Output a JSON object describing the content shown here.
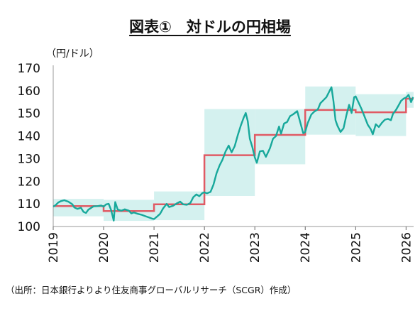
{
  "chart_data": {
    "type": "line",
    "title": "図表①　対ドルの円相場",
    "unit_label": "（円/ドル）",
    "source": "（出所：日本銀行よりより住友商事グローバルリサーチ（SCGR）作成）",
    "ylim": [
      100,
      170
    ],
    "yticks": [
      100,
      110,
      120,
      130,
      140,
      150,
      160,
      170
    ],
    "xlim": [
      2019.0,
      2026.15
    ],
    "xticks": [
      "2019",
      "2020",
      "2021",
      "2022",
      "2023",
      "2024",
      "2025",
      "2026"
    ],
    "grid": false,
    "colors": {
      "rate_line": "#17a89b",
      "average_line": "#e05a64",
      "range_band": "#d4f1ef"
    },
    "series": [
      {
        "kind": "range_band",
        "bands": [
          {
            "year": 2019,
            "low": 104.5,
            "high": 112.2
          },
          {
            "year": 2020,
            "low": 102.5,
            "high": 111.8
          },
          {
            "year": 2021,
            "low": 102.8,
            "high": 115.5
          },
          {
            "year": 2022,
            "low": 113.5,
            "high": 151.9
          },
          {
            "year": 2023,
            "low": 127.5,
            "high": 151.9
          },
          {
            "year": 2024,
            "low": 140.6,
            "high": 161.9
          },
          {
            "year": 2025,
            "low": 140.0,
            "high": 158.5
          },
          {
            "year": 2026,
            "low": 152.5,
            "high": 159.5
          }
        ]
      },
      {
        "kind": "annual_average",
        "averages": [
          {
            "year": 2019,
            "value": 109.0
          },
          {
            "year": 2020,
            "value": 106.8
          },
          {
            "year": 2021,
            "value": 109.8
          },
          {
            "year": 2022,
            "value": 131.5
          },
          {
            "year": 2023,
            "value": 140.5
          },
          {
            "year": 2024,
            "value": 151.5
          },
          {
            "year": 2025,
            "value": 150.5
          },
          {
            "year": 2026,
            "value": 156.5
          }
        ]
      },
      {
        "kind": "rate",
        "points": [
          [
            2019.0,
            108.8
          ],
          [
            2019.05,
            109.5
          ],
          [
            2019.1,
            110.6
          ],
          [
            2019.15,
            111.2
          ],
          [
            2019.22,
            111.6
          ],
          [
            2019.3,
            111.0
          ],
          [
            2019.38,
            109.8
          ],
          [
            2019.42,
            108.4
          ],
          [
            2019.48,
            107.8
          ],
          [
            2019.55,
            108.3
          ],
          [
            2019.6,
            106.5
          ],
          [
            2019.65,
            106.0
          ],
          [
            2019.7,
            107.5
          ],
          [
            2019.75,
            108.2
          ],
          [
            2019.8,
            108.9
          ],
          [
            2019.88,
            109.0
          ],
          [
            2019.95,
            109.3
          ],
          [
            2020.0,
            108.8
          ],
          [
            2020.05,
            109.8
          ],
          [
            2020.1,
            110.0
          ],
          [
            2020.15,
            107.2
          ],
          [
            2020.2,
            102.6
          ],
          [
            2020.23,
            110.8
          ],
          [
            2020.28,
            107.5
          ],
          [
            2020.35,
            107.0
          ],
          [
            2020.42,
            107.6
          ],
          [
            2020.5,
            107.0
          ],
          [
            2020.55,
            105.8
          ],
          [
            2020.6,
            106.2
          ],
          [
            2020.68,
            105.6
          ],
          [
            2020.75,
            105.2
          ],
          [
            2020.82,
            104.6
          ],
          [
            2020.9,
            104.0
          ],
          [
            2020.96,
            103.5
          ],
          [
            2021.0,
            103.3
          ],
          [
            2021.05,
            104.2
          ],
          [
            2021.12,
            105.6
          ],
          [
            2021.18,
            108.0
          ],
          [
            2021.25,
            110.0
          ],
          [
            2021.3,
            108.6
          ],
          [
            2021.38,
            109.2
          ],
          [
            2021.45,
            110.2
          ],
          [
            2021.52,
            111.0
          ],
          [
            2021.58,
            109.8
          ],
          [
            2021.65,
            109.6
          ],
          [
            2021.72,
            110.4
          ],
          [
            2021.78,
            113.0
          ],
          [
            2021.84,
            114.2
          ],
          [
            2021.9,
            113.4
          ],
          [
            2021.96,
            114.8
          ],
          [
            2022.0,
            115.1
          ],
          [
            2022.05,
            114.7
          ],
          [
            2022.12,
            115.3
          ],
          [
            2022.18,
            118.5
          ],
          [
            2022.24,
            123.5
          ],
          [
            2022.3,
            127.0
          ],
          [
            2022.36,
            129.6
          ],
          [
            2022.42,
            133.2
          ],
          [
            2022.48,
            135.8
          ],
          [
            2022.54,
            132.8
          ],
          [
            2022.6,
            135.5
          ],
          [
            2022.66,
            140.2
          ],
          [
            2022.72,
            144.5
          ],
          [
            2022.78,
            148.2
          ],
          [
            2022.82,
            150.2
          ],
          [
            2022.86,
            146.6
          ],
          [
            2022.9,
            138.8
          ],
          [
            2022.95,
            135.2
          ],
          [
            2023.0,
            130.5
          ],
          [
            2023.04,
            128.2
          ],
          [
            2023.1,
            133.2
          ],
          [
            2023.16,
            133.5
          ],
          [
            2023.22,
            130.8
          ],
          [
            2023.3,
            134.6
          ],
          [
            2023.36,
            138.8
          ],
          [
            2023.42,
            140.0
          ],
          [
            2023.48,
            144.2
          ],
          [
            2023.52,
            141.0
          ],
          [
            2023.58,
            145.5
          ],
          [
            2023.64,
            146.2
          ],
          [
            2023.7,
            148.8
          ],
          [
            2023.76,
            149.6
          ],
          [
            2023.84,
            151.0
          ],
          [
            2023.9,
            146.2
          ],
          [
            2023.96,
            141.2
          ],
          [
            2024.0,
            141.8
          ],
          [
            2024.05,
            145.8
          ],
          [
            2024.12,
            149.5
          ],
          [
            2024.18,
            150.8
          ],
          [
            2024.25,
            151.8
          ],
          [
            2024.3,
            154.5
          ],
          [
            2024.36,
            155.8
          ],
          [
            2024.42,
            157.2
          ],
          [
            2024.48,
            159.8
          ],
          [
            2024.52,
            161.6
          ],
          [
            2024.56,
            155.5
          ],
          [
            2024.6,
            147.0
          ],
          [
            2024.64,
            144.5
          ],
          [
            2024.7,
            141.8
          ],
          [
            2024.76,
            143.4
          ],
          [
            2024.82,
            149.5
          ],
          [
            2024.87,
            153.8
          ],
          [
            2024.92,
            150.2
          ],
          [
            2024.97,
            157.2
          ],
          [
            2025.0,
            157.5
          ],
          [
            2025.05,
            155.2
          ],
          [
            2025.12,
            151.8
          ],
          [
            2025.18,
            148.4
          ],
          [
            2025.24,
            145.0
          ],
          [
            2025.3,
            143.0
          ],
          [
            2025.34,
            140.8
          ],
          [
            2025.4,
            145.2
          ],
          [
            2025.46,
            144.0
          ],
          [
            2025.52,
            145.8
          ],
          [
            2025.58,
            147.2
          ],
          [
            2025.64,
            147.6
          ],
          [
            2025.7,
            147.0
          ],
          [
            2025.74,
            149.8
          ],
          [
            2025.8,
            151.5
          ],
          [
            2025.85,
            153.5
          ],
          [
            2025.9,
            155.5
          ],
          [
            2025.95,
            156.5
          ],
          [
            2026.0,
            157.0
          ],
          [
            2026.05,
            158.2
          ],
          [
            2026.1,
            155.0
          ],
          [
            2026.14,
            157.2
          ]
        ]
      }
    ]
  }
}
